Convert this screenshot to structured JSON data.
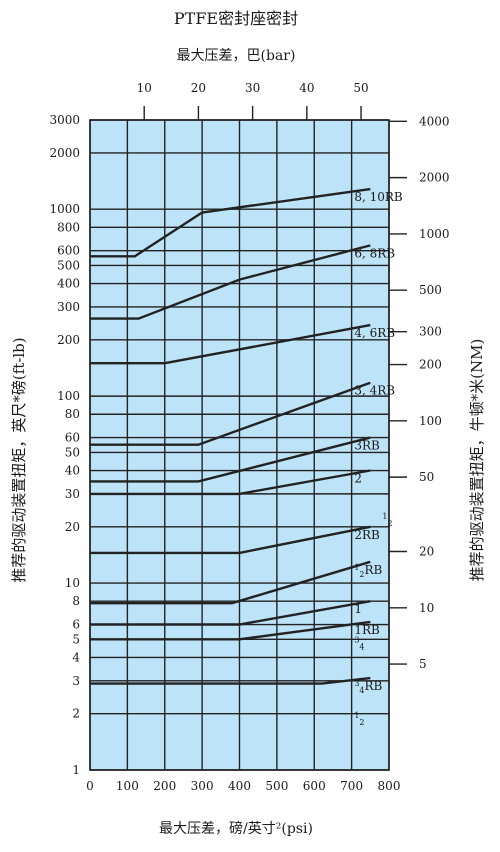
{
  "chart_data": {
    "type": "line",
    "title": "PTFE密封座密封",
    "top_axis_label": "最大压差，巴(bar)",
    "xlabel": "最大压差，磅/英寸²(psi)",
    "ylabel_left": "推荐的驱动装置扭矩，英尺*磅(ft-lb)",
    "ylabel_right": "推荐的驱动装置扭矩，牛顿*米(NM)",
    "x_unit": "psi",
    "xlim": [
      0,
      800
    ],
    "ylim": [
      1,
      3000
    ],
    "y_scale": "log",
    "grid": true,
    "background_color": "#bde3f8",
    "line_color": "#222222",
    "x_ticks": [
      "0",
      "100",
      "200",
      "300",
      "400",
      "500",
      "600",
      "700",
      "800"
    ],
    "y_ticks": [
      "1",
      "2",
      "3",
      "4",
      "5",
      "6",
      "8",
      "10",
      "20",
      "30",
      "40",
      "50",
      "60",
      "80",
      "100",
      "200",
      "300",
      "400",
      "500",
      "600",
      "800",
      "1000",
      "2000",
      "3000"
    ],
    "top_ticks": [
      "10",
      "20",
      "30",
      "40",
      "50"
    ],
    "right_ticks": [
      "5",
      "10",
      "20",
      "50",
      "100",
      "200",
      "300",
      "500",
      "1000",
      "2000",
      "4000"
    ],
    "series": [
      {
        "name": "8, 10RB",
        "label_sup": "",
        "label_sub": "",
        "label_tail": "",
        "x": [
          0,
          120,
          300,
          750
        ],
        "y": [
          560,
          560,
          960,
          1280
        ]
      },
      {
        "name": "6, 8RB",
        "label_sup": "",
        "label_sub": "",
        "label_tail": "",
        "x": [
          0,
          130,
          400,
          750
        ],
        "y": [
          260,
          260,
          420,
          640
        ]
      },
      {
        "name": "4, 6RB",
        "label_sup": "",
        "label_sub": "",
        "label_tail": "",
        "x": [
          0,
          200,
          750
        ],
        "y": [
          150,
          150,
          240
        ]
      },
      {
        "name": "3, 4RB",
        "label_sup": "",
        "label_sub": "",
        "label_tail": "",
        "x": [
          0,
          290,
          750
        ],
        "y": [
          55,
          55,
          118
        ]
      },
      {
        "name": "3RB",
        "label_sup": "",
        "label_sub": "",
        "label_tail": "",
        "x": [
          0,
          290,
          750
        ],
        "y": [
          35,
          35,
          60
        ]
      },
      {
        "name": "2",
        "label_sup": "",
        "label_sub": "",
        "label_tail": "",
        "x": [
          0,
          400,
          750
        ],
        "y": [
          30,
          30,
          40
        ]
      },
      {
        "name": "2RB",
        "label_sup": "",
        "label_sub": "",
        "label_tail": "",
        "x": [
          0,
          400,
          750
        ],
        "y": [
          14.5,
          14.5,
          20
        ]
      },
      {
        "name": "1½RB",
        "label_sup": "1",
        "label_sub": "2",
        "label_tail": "RB",
        "x": [
          0,
          380,
          750
        ],
        "y": [
          7.8,
          7.8,
          13
        ]
      },
      {
        "name": "1",
        "label_sup": "",
        "label_sub": "",
        "label_tail": "",
        "x": [
          0,
          400,
          750
        ],
        "y": [
          6,
          6,
          8
        ]
      },
      {
        "name": "1RB",
        "label_sup": "",
        "label_sub": "",
        "label_tail": "",
        "x": [
          0,
          400,
          750
        ],
        "y": [
          5,
          5,
          6.2
        ]
      },
      {
        "name": "¾RB",
        "label_sup": "3",
        "label_sub": "4",
        "label_tail": "RB",
        "x": [
          0,
          620,
          750
        ],
        "y": [
          2.9,
          2.9,
          3.1
        ]
      }
    ],
    "annotations": [
      {
        "sup": "1",
        "sub": "2",
        "at": [
          825,
          22
        ]
      },
      {
        "sup": "3",
        "sub": "4",
        "at": [
          750,
          4.8
        ]
      },
      {
        "sup": "1",
        "sub": "2",
        "at": [
          750,
          1.9
        ]
      }
    ]
  }
}
